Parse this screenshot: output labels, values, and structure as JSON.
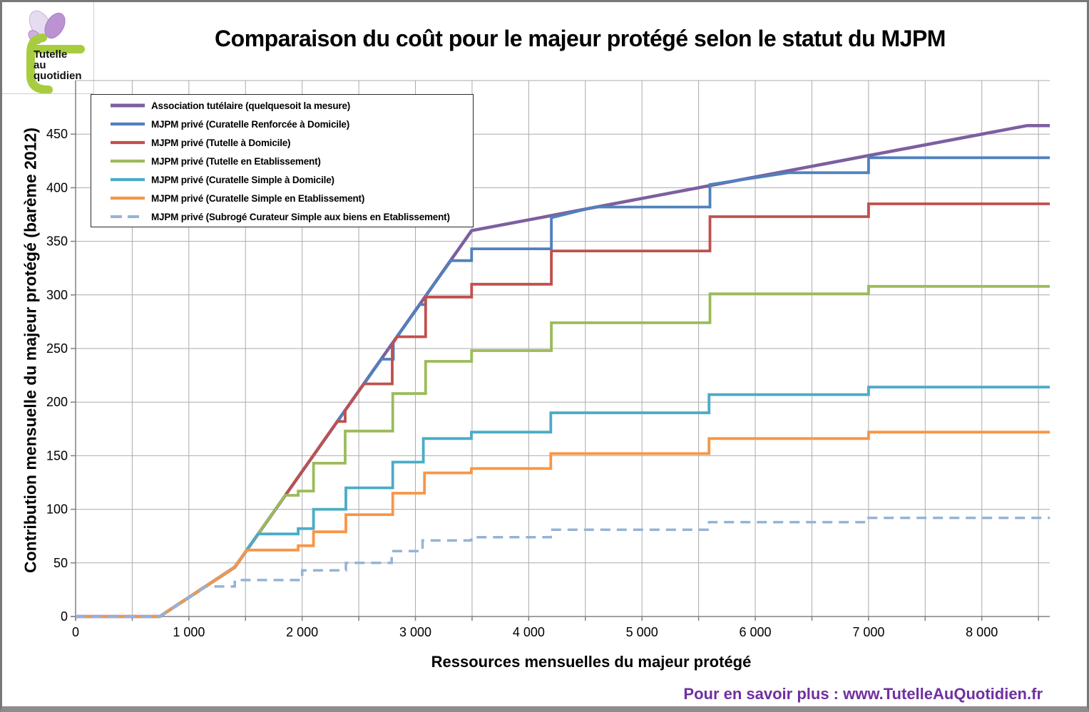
{
  "title": "Comparaison du coût pour le majeur protégé selon le statut du MJPM",
  "logo": {
    "lines": [
      "Tutelle",
      "au",
      "quotidien"
    ]
  },
  "footer": "Pour en savoir plus : www.TutelleAuQuotidien.fr",
  "chart_data": {
    "type": "line",
    "title": "Comparaison du coût pour le majeur protégé selon le statut du MJPM",
    "xlabel": "Ressources mensuelles du majeur protégé",
    "ylabel": "Contribution mensuelle du majeur protégé (barème 2012)",
    "xlim": [
      0,
      8600
    ],
    "ylim": [
      0,
      500
    ],
    "x_tick_values": [
      0,
      1000,
      2000,
      3000,
      4000,
      5000,
      6000,
      7000,
      8000
    ],
    "x_tick_labels": [
      "0",
      "1 000",
      "2 000",
      "3 000",
      "4 000",
      "5 000",
      "6 000",
      "7 000",
      "8 000"
    ],
    "y_tick_values": [
      0,
      50,
      100,
      150,
      200,
      250,
      300,
      350,
      400,
      450
    ],
    "y_tick_labels": [
      "0",
      "50",
      "100",
      "150",
      "200",
      "250",
      "300",
      "350",
      "400",
      "450"
    ],
    "x_grid_step": 500,
    "y_grid_step": 50,
    "grid": true,
    "legend_position": "top-left",
    "series": [
      {
        "name": "Association tutélaire (quelquesoit la mesure)",
        "color": "#7D5FA0",
        "dash": null,
        "width": 4.5,
        "points": [
          [
            0,
            0
          ],
          [
            743,
            0
          ],
          [
            1405,
            46
          ],
          [
            3496,
            360
          ],
          [
            8400,
            458
          ],
          [
            8600,
            458
          ]
        ]
      },
      {
        "name": "MJPM privé (Curatelle Renforcée à Domicile)",
        "color": "#4F81BD",
        "dash": null,
        "width": 3.8,
        "points": [
          [
            0,
            0
          ],
          [
            743,
            0
          ],
          [
            1405,
            46
          ],
          [
            2700,
            240
          ],
          [
            2805,
            240
          ],
          [
            2805,
            256
          ],
          [
            3040,
            291
          ],
          [
            3090,
            291
          ],
          [
            3090,
            299
          ],
          [
            3315,
            332
          ],
          [
            3496,
            332
          ],
          [
            3496,
            343
          ],
          [
            4200,
            343
          ],
          [
            4200,
            372
          ],
          [
            4580,
            382
          ],
          [
            5600,
            382
          ],
          [
            5600,
            403
          ],
          [
            6300,
            414
          ],
          [
            7000,
            414
          ],
          [
            7000,
            428
          ],
          [
            8600,
            428
          ]
        ]
      },
      {
        "name": "MJPM privé (Tutelle à Domicile)",
        "color": "#C0504D",
        "dash": null,
        "width": 3.8,
        "points": [
          [
            0,
            0
          ],
          [
            743,
            0
          ],
          [
            1405,
            46
          ],
          [
            2310,
            182
          ],
          [
            2380,
            182
          ],
          [
            2380,
            192
          ],
          [
            2545,
            217
          ],
          [
            2795,
            217
          ],
          [
            2795,
            254
          ],
          [
            2840,
            261
          ],
          [
            3090,
            261
          ],
          [
            3090,
            298
          ],
          [
            3496,
            298
          ],
          [
            3496,
            310
          ],
          [
            4200,
            310
          ],
          [
            4200,
            341
          ],
          [
            5600,
            341
          ],
          [
            5600,
            373
          ],
          [
            7000,
            373
          ],
          [
            7000,
            385
          ],
          [
            8600,
            385
          ]
        ]
      },
      {
        "name": "MJPM privé (Tutelle en Etablissement)",
        "color": "#9BBB59",
        "dash": null,
        "width": 3.8,
        "points": [
          [
            0,
            0
          ],
          [
            743,
            0
          ],
          [
            1405,
            46
          ],
          [
            1850,
            113
          ],
          [
            1965,
            113
          ],
          [
            1965,
            117
          ],
          [
            2100,
            117
          ],
          [
            2100,
            143
          ],
          [
            2380,
            143
          ],
          [
            2380,
            173
          ],
          [
            2800,
            173
          ],
          [
            2800,
            208
          ],
          [
            3090,
            208
          ],
          [
            3090,
            238
          ],
          [
            3496,
            238
          ],
          [
            3496,
            248
          ],
          [
            4200,
            248
          ],
          [
            4200,
            274
          ],
          [
            5600,
            274
          ],
          [
            5600,
            301
          ],
          [
            7000,
            301
          ],
          [
            7000,
            308
          ],
          [
            8600,
            308
          ]
        ]
      },
      {
        "name": "MJPM privé (Curatelle Simple à Domicile)",
        "color": "#4BACC6",
        "dash": null,
        "width": 3.8,
        "points": [
          [
            0,
            0
          ],
          [
            743,
            0
          ],
          [
            1405,
            46
          ],
          [
            1610,
            77
          ],
          [
            1965,
            77
          ],
          [
            1965,
            82
          ],
          [
            2100,
            82
          ],
          [
            2100,
            100
          ],
          [
            2386,
            100
          ],
          [
            2386,
            120
          ],
          [
            2800,
            120
          ],
          [
            2800,
            144
          ],
          [
            3070,
            144
          ],
          [
            3070,
            166
          ],
          [
            3494,
            166
          ],
          [
            3494,
            172
          ],
          [
            4195,
            172
          ],
          [
            4195,
            190
          ],
          [
            5592,
            190
          ],
          [
            5592,
            207
          ],
          [
            7000,
            207
          ],
          [
            7000,
            214
          ],
          [
            8600,
            214
          ]
        ]
      },
      {
        "name": "MJPM privé (Curatelle Simple en Etablissement)",
        "color": "#F79646",
        "dash": null,
        "width": 3.8,
        "points": [
          [
            0,
            0
          ],
          [
            743,
            0
          ],
          [
            1405,
            46
          ],
          [
            1510,
            62
          ],
          [
            1965,
            62
          ],
          [
            1965,
            66
          ],
          [
            2100,
            66
          ],
          [
            2100,
            79
          ],
          [
            2386,
            79
          ],
          [
            2386,
            95
          ],
          [
            2800,
            95
          ],
          [
            2800,
            115
          ],
          [
            3080,
            115
          ],
          [
            3080,
            134
          ],
          [
            3494,
            134
          ],
          [
            3494,
            138
          ],
          [
            4195,
            138
          ],
          [
            4195,
            152
          ],
          [
            5592,
            152
          ],
          [
            5592,
            166
          ],
          [
            7000,
            166
          ],
          [
            7000,
            172
          ],
          [
            8600,
            172
          ]
        ]
      },
      {
        "name": "MJPM privé (Subrogé Curateur Simple aux biens en Etablissement)",
        "color": "#95B3D7",
        "dash": "14 9",
        "width": 3.5,
        "points": [
          [
            0,
            0
          ],
          [
            743,
            0
          ],
          [
            1150,
            28
          ],
          [
            1405,
            28
          ],
          [
            1405,
            34
          ],
          [
            2000,
            34
          ],
          [
            2000,
            43
          ],
          [
            2386,
            43
          ],
          [
            2386,
            50
          ],
          [
            2790,
            50
          ],
          [
            2790,
            61
          ],
          [
            3063,
            61
          ],
          [
            3063,
            71
          ],
          [
            3494,
            71
          ],
          [
            3494,
            74
          ],
          [
            4195,
            74
          ],
          [
            4195,
            81
          ],
          [
            5592,
            81
          ],
          [
            5592,
            88
          ],
          [
            7000,
            88
          ],
          [
            7000,
            92
          ],
          [
            8600,
            92
          ]
        ]
      }
    ]
  }
}
